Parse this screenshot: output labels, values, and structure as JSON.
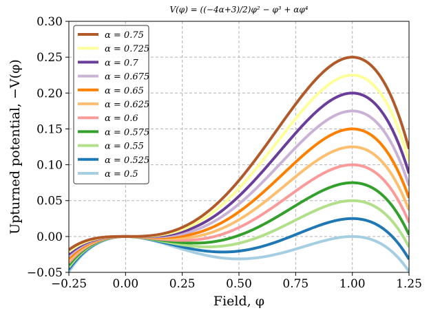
{
  "chart_data": {
    "type": "line",
    "title": "V(φ) = ((−4α+3)/2)φ² − φ³ + αφ⁴",
    "xlabel": "Field, φ",
    "ylabel": "Upturned potential, −V(φ)",
    "xlim": [
      -0.25,
      1.25
    ],
    "ylim": [
      -0.05,
      0.3
    ],
    "xticks": [
      -0.25,
      0.0,
      0.25,
      0.5,
      0.75,
      1.0,
      1.25
    ],
    "xtick_labels": [
      "−0.25",
      "0.00",
      "0.25",
      "0.50",
      "0.75",
      "1.00",
      "1.25"
    ],
    "yticks": [
      -0.05,
      0.0,
      0.05,
      0.1,
      0.15,
      0.2,
      0.25,
      0.3
    ],
    "ytick_labels": [
      "−0.05",
      "0.00",
      "0.05",
      "0.10",
      "0.15",
      "0.20",
      "0.25",
      "0.30"
    ],
    "grid": true,
    "legend_position": "upper-left",
    "function": "-V(phi) = -((-4*alpha+3)/2)*phi^2 + phi^3 - alpha*phi^4",
    "series": [
      {
        "name": "α = 0.75",
        "alpha": 0.75,
        "color": "#b15928"
      },
      {
        "name": "α = 0.725",
        "alpha": 0.725,
        "color": "#ffff99"
      },
      {
        "name": "α = 0.7",
        "alpha": 0.7,
        "color": "#6a3d9a"
      },
      {
        "name": "α = 0.675",
        "alpha": 0.675,
        "color": "#cab2d6"
      },
      {
        "name": "α = 0.65",
        "alpha": 0.65,
        "color": "#ff7f00"
      },
      {
        "name": "α = 0.625",
        "alpha": 0.625,
        "color": "#fdbf6f"
      },
      {
        "name": "α = 0.6",
        "alpha": 0.6,
        "color": "#fb9a99"
      },
      {
        "name": "α = 0.575",
        "alpha": 0.575,
        "color": "#33a02c"
      },
      {
        "name": "α = 0.55",
        "alpha": 0.55,
        "color": "#b2df8a"
      },
      {
        "name": "α = 0.525",
        "alpha": 0.525,
        "color": "#1f78b4"
      },
      {
        "name": "α = 0.5",
        "alpha": 0.5,
        "color": "#a6cee3"
      }
    ]
  }
}
